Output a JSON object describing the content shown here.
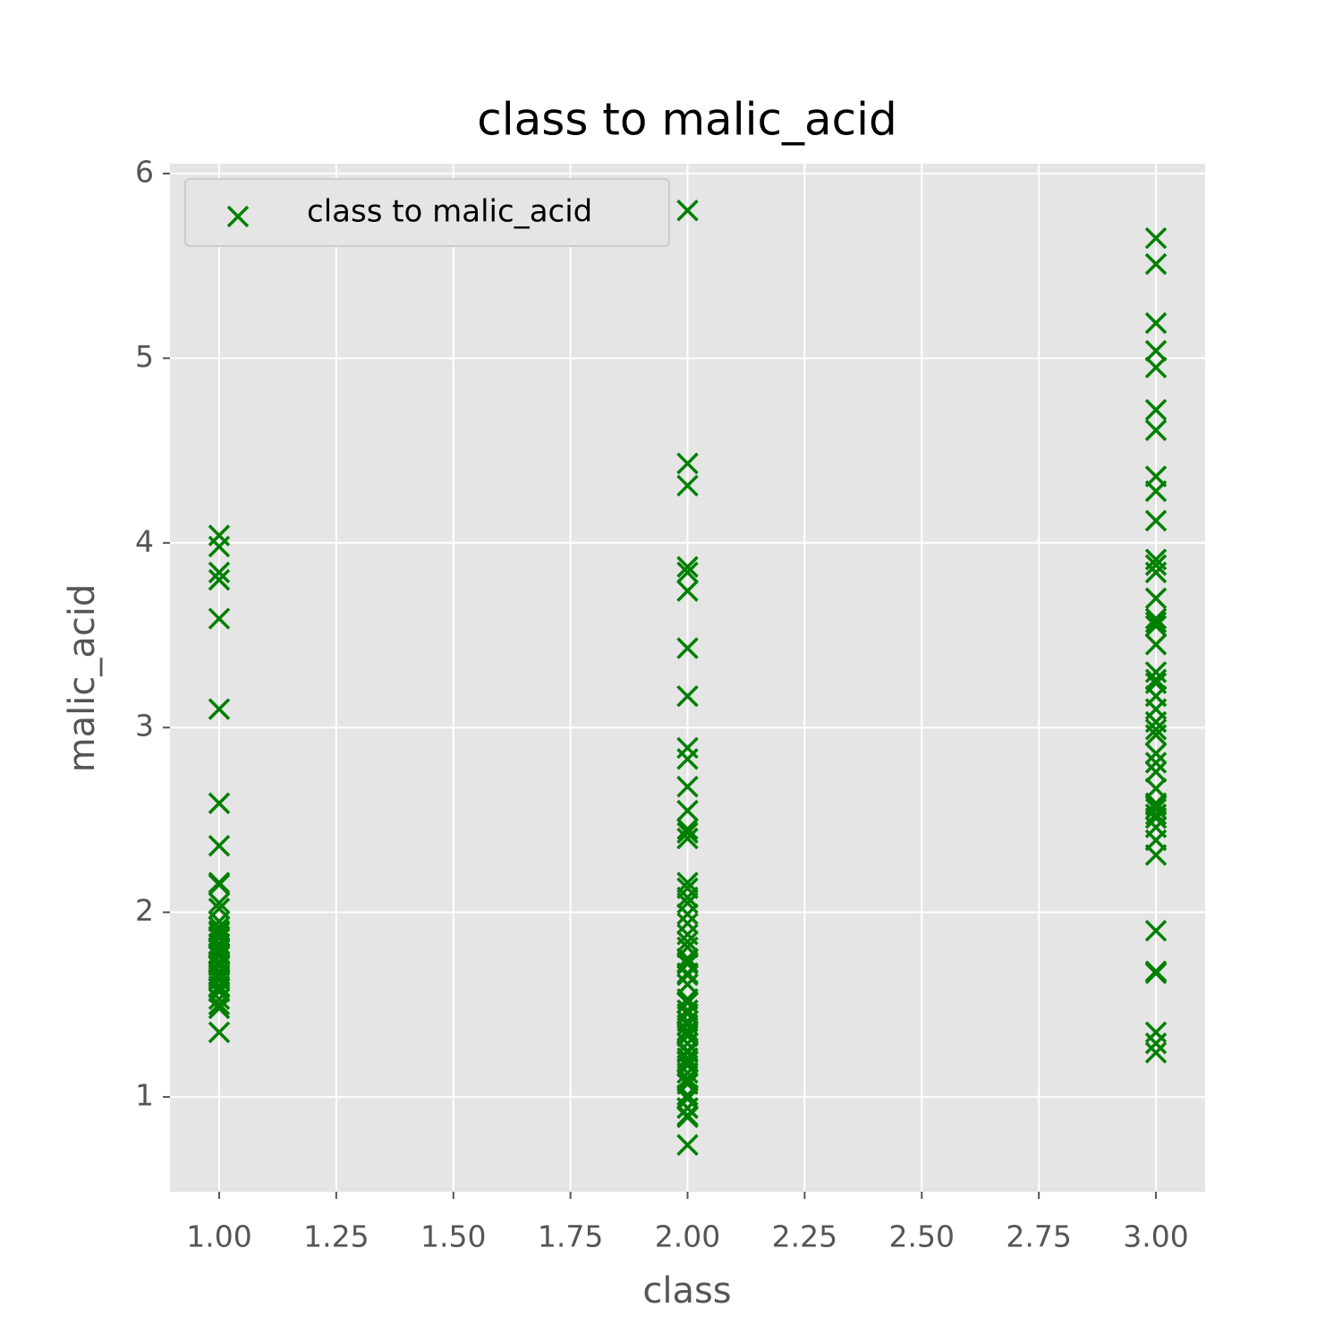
{
  "chart_data": {
    "type": "scatter",
    "title": "class to malic_acid",
    "x_label": "class",
    "y_label": "malic_acid",
    "xlim": [
      0.895,
      3.105
    ],
    "ylim": [
      0.487,
      6.053
    ],
    "xticks": [
      {
        "value": 1,
        "label": "1.00"
      },
      {
        "value": 1.25,
        "label": "1.25"
      },
      {
        "value": 1.5,
        "label": "1.50"
      },
      {
        "value": 1.75,
        "label": "1.75"
      },
      {
        "value": 2,
        "label": "2.00"
      },
      {
        "value": 2.25,
        "label": "2.25"
      },
      {
        "value": 2.5,
        "label": "2.50"
      },
      {
        "value": 2.75,
        "label": "2.75"
      },
      {
        "value": 3,
        "label": "3.00"
      }
    ],
    "yticks": [
      1,
      2,
      3,
      4,
      5,
      6
    ],
    "grid": true,
    "legend": "upper left",
    "series": [
      {
        "name": "class to malic_acid",
        "color": "#008000",
        "marker": "x",
        "x": [
          1,
          1,
          1,
          1,
          1,
          1,
          1,
          1,
          1,
          1,
          1,
          1,
          1,
          1,
          1,
          1,
          1,
          1,
          1,
          1,
          1,
          1,
          1,
          1,
          1,
          1,
          1,
          1,
          1,
          1,
          1,
          1,
          1,
          1,
          1,
          1,
          1,
          1,
          1,
          1,
          1,
          1,
          1,
          1,
          1,
          1,
          1,
          1,
          1,
          1,
          2,
          2,
          2,
          2,
          2,
          2,
          2,
          2,
          2,
          2,
          2,
          2,
          2,
          2,
          2,
          2,
          2,
          2,
          2,
          2,
          2,
          2,
          2,
          2,
          2,
          2,
          2,
          2,
          2,
          2,
          2,
          2,
          2,
          2,
          2,
          2,
          2,
          2,
          2,
          2,
          2,
          2,
          2,
          2,
          2,
          2,
          2,
          2,
          2,
          2,
          2,
          2,
          2,
          2,
          2,
          2,
          2,
          2,
          2,
          3,
          3,
          3,
          3,
          3,
          3,
          3,
          3,
          3,
          3,
          3,
          3,
          3,
          3,
          3,
          3,
          3,
          3,
          3,
          3,
          3,
          3,
          3,
          3,
          3,
          3,
          3,
          3,
          3,
          3,
          3,
          3,
          3,
          3,
          3,
          3,
          3,
          3,
          3,
          3,
          3,
          3,
          3,
          3
        ],
        "values": [
          1.71,
          1.78,
          2.36,
          1.95,
          2.59,
          1.76,
          1.87,
          2.15,
          1.64,
          1.35,
          2.16,
          1.48,
          1.73,
          1.73,
          1.87,
          1.81,
          1.92,
          1.57,
          1.59,
          3.1,
          1.63,
          3.8,
          1.86,
          1.6,
          1.81,
          2.05,
          1.77,
          1.72,
          1.9,
          1.68,
          1.5,
          1.66,
          1.83,
          1.53,
          1.8,
          1.81,
          1.64,
          1.65,
          1.5,
          3.59,
          1.71,
          3.84,
          1.89,
          3.98,
          1.77,
          4.04,
          1.68,
          2.02,
          1.73,
          1.65,
          5.8,
          4.43,
          4.31,
          3.87,
          3.84,
          3.74,
          3.43,
          3.17,
          2.89,
          2.83,
          2.68,
          2.55,
          2.45,
          2.43,
          2.4,
          2.16,
          2.13,
          2.08,
          2.05,
          1.99,
          1.94,
          1.88,
          1.84,
          1.81,
          1.75,
          1.73,
          1.72,
          1.67,
          1.66,
          1.61,
          1.61,
          1.53,
          1.51,
          1.51,
          1.47,
          1.45,
          1.41,
          1.39,
          1.36,
          1.35,
          1.34,
          1.33,
          1.29,
          1.25,
          1.24,
          1.21,
          1.19,
          1.17,
          1.13,
          1.1,
          1.09,
          1.07,
          1.01,
          0.99,
          0.94,
          0.94,
          0.9,
          0.89,
          0.74,
          5.65,
          5.51,
          5.19,
          5.04,
          4.95,
          4.72,
          4.61,
          4.36,
          4.28,
          4.12,
          3.91,
          3.88,
          3.84,
          3.7,
          3.59,
          3.57,
          3.55,
          3.45,
          3.3,
          3.26,
          3.24,
          3.17,
          3.1,
          3.03,
          2.99,
          2.96,
          2.86,
          2.81,
          2.76,
          2.67,
          2.59,
          2.58,
          2.56,
          2.53,
          2.51,
          2.46,
          2.39,
          2.31,
          1.9,
          1.68,
          1.67,
          1.35,
          1.29,
          1.24
        ]
      }
    ]
  }
}
